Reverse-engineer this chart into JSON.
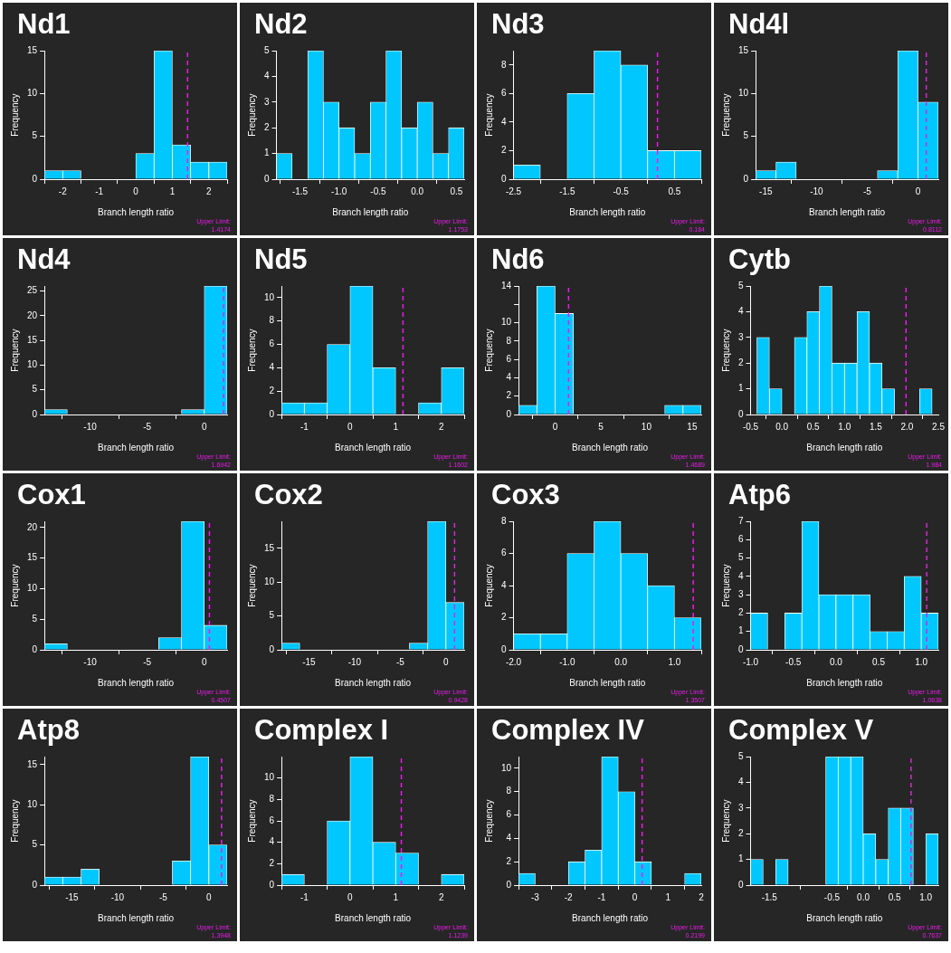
{
  "chart_data": [
    {
      "type": "histogram",
      "title": "Nd1",
      "xlabel": "Branch length ratio",
      "ylabel": "Frequency",
      "color": "#00c8ff",
      "bins": [
        -2.5,
        -2,
        -1.5,
        -1,
        -0.5,
        0,
        0.5,
        1,
        1.5,
        2,
        2.5
      ],
      "values": [
        1,
        1,
        0,
        0,
        0,
        3,
        15,
        4,
        2,
        2
      ],
      "xlim": [
        -2.5,
        2.5
      ],
      "xticks": [
        -2,
        -1,
        0,
        1,
        2
      ],
      "ylim": [
        0,
        15
      ],
      "yticks": [
        0,
        5,
        10,
        15
      ],
      "ref_lines": [
        {
          "axis": "x",
          "value": 1.4174,
          "label": "Upper Limit:\n1.4174",
          "color": "#e81ce8",
          "line_style": "dashed"
        }
      ]
    },
    {
      "type": "histogram",
      "title": "Nd2",
      "xlabel": "Branch length ratio",
      "ylabel": "Frequency",
      "color": "#00c8ff",
      "bins": [
        -1.8,
        -1.6,
        -1.4,
        -1.2,
        -1,
        -0.8,
        -0.6,
        -0.4,
        -0.2,
        0,
        0.2,
        0.4,
        0.6
      ],
      "values": [
        1,
        0,
        5,
        3,
        2,
        1,
        3,
        5,
        2,
        3,
        1,
        2
      ],
      "xlim": [
        -1.8,
        0.6
      ],
      "xticks": [
        -1.5,
        {
          "value": -1,
          "label": "-1.0"
        },
        -0.5,
        {
          "value": 0,
          "label": "0.0"
        },
        0.5
      ],
      "ylim": [
        0,
        5
      ],
      "yticks": [
        0,
        1,
        2,
        3,
        4,
        5
      ],
      "annotations": [
        "Upper Limit:\n1.1753"
      ]
    },
    {
      "type": "histogram",
      "title": "Nd3",
      "xlabel": "Branch length ratio",
      "ylabel": "Frequency",
      "color": "#00c8ff",
      "bins": [
        -2.5,
        -2,
        -1.5,
        -1,
        -0.5,
        0,
        0.5,
        1
      ],
      "values": [
        1,
        0,
        6,
        9,
        8,
        2,
        2
      ],
      "xlim": [
        -2.5,
        1
      ],
      "xticks": [
        -2.5,
        -1.5,
        -0.5,
        0.5
      ],
      "ylim": [
        0,
        9
      ],
      "yticks": [
        0,
        2,
        4,
        6,
        8
      ],
      "ref_lines": [
        {
          "axis": "x",
          "value": 0.184,
          "label": "Upper Limit:\n0.184",
          "color": "#e81ce8",
          "line_style": "dashed"
        }
      ]
    },
    {
      "type": "histogram",
      "title": "Nd4l",
      "xlabel": "Branch length ratio",
      "ylabel": "Frequency",
      "color": "#00c8ff",
      "bins": [
        -16,
        -14,
        -12,
        -10,
        -8,
        -6,
        -4,
        -2,
        0,
        2
      ],
      "values": [
        1,
        2,
        0,
        0,
        0,
        0,
        1,
        15,
        9
      ],
      "xlim": [
        -16,
        2
      ],
      "xticks": [
        -15,
        -10,
        -5,
        0
      ],
      "ylim": [
        0,
        15
      ],
      "yticks": [
        0,
        5,
        10,
        15
      ],
      "ref_lines": [
        {
          "axis": "x",
          "value": 0.8112,
          "label": "Upper Limit:\n0.8112",
          "color": "#e81ce8",
          "line_style": "dashed"
        }
      ]
    },
    {
      "type": "histogram",
      "title": "Nd4",
      "xlabel": "Branch length ratio",
      "ylabel": "Frequency",
      "color": "#00c8ff",
      "bins": [
        -14,
        -12,
        -10,
        -8,
        -6,
        -4,
        -2,
        0,
        2
      ],
      "values": [
        1,
        0,
        0,
        0,
        0,
        0,
        1,
        26
      ],
      "xlim": [
        -14,
        2
      ],
      "xticks": [
        -10,
        -5,
        0
      ],
      "ylim": [
        0,
        26
      ],
      "yticks": [
        0,
        5,
        10,
        15,
        20,
        25
      ],
      "ref_lines": [
        {
          "axis": "x",
          "value": 1.6942,
          "label": "Upper Limit:\n1.6942",
          "color": "#e81ce8",
          "line_style": "dashed"
        }
      ]
    },
    {
      "type": "histogram",
      "title": "Nd5",
      "xlabel": "Branch length ratio",
      "ylabel": "Frequency",
      "color": "#00c8ff",
      "bins": [
        -1.5,
        -1,
        -0.5,
        0,
        0.5,
        1,
        1.5,
        2,
        2.5
      ],
      "values": [
        1,
        1,
        6,
        11,
        4,
        0,
        1,
        4
      ],
      "xlim": [
        -1.5,
        2.5
      ],
      "xticks": [
        -1,
        0,
        1,
        2
      ],
      "ylim": [
        0,
        11
      ],
      "yticks": [
        0,
        2,
        4,
        6,
        8,
        10
      ],
      "ref_lines": [
        {
          "axis": "x",
          "value": 1.1602,
          "label": "Upper Limit:\n1.1602",
          "color": "#e81ce8",
          "line_style": "dashed"
        }
      ]
    },
    {
      "type": "histogram",
      "title": "Nd6",
      "xlabel": "Branch length ratio",
      "ylabel": "Frequency",
      "color": "#00c8ff",
      "bins": [
        -4,
        -2,
        0,
        2,
        4,
        6,
        8,
        10,
        12,
        14,
        16
      ],
      "values": [
        1,
        14,
        11,
        0,
        0,
        0,
        0,
        0,
        1,
        1
      ],
      "xlim": [
        -4,
        16
      ],
      "xticks": [
        0,
        5,
        10,
        15
      ],
      "ylim": [
        0,
        14
      ],
      "yticks": [
        0,
        2,
        4,
        6,
        8,
        10,
        {
          "value": 12,
          "label": null
        },
        14
      ],
      "ref_lines": [
        {
          "axis": "x",
          "value": 1.4689,
          "label": "Upper Limit:\n1.4689",
          "color": "#e81ce8",
          "line_style": "dashed"
        }
      ]
    },
    {
      "type": "histogram",
      "title": "Cytb",
      "xlabel": "Branch length ratio",
      "ylabel": "Frequency",
      "color": "#00c8ff",
      "bins": [
        -0.4,
        -0.2,
        0,
        0.2,
        0.4,
        0.6,
        0.8,
        1,
        1.2,
        1.4,
        1.6,
        1.8,
        2,
        2.2,
        2.4
      ],
      "values": [
        3,
        1,
        0,
        3,
        4,
        5,
        2,
        2,
        4,
        2,
        1,
        0,
        0,
        1
      ],
      "xlim": [
        -0.5,
        2.5
      ],
      "xticks": [
        -0.5,
        {
          "value": 0,
          "label": "0.0"
        },
        0.5,
        {
          "value": 1,
          "label": "1.0"
        },
        1.5,
        {
          "value": 2,
          "label": "2.0"
        },
        2.5
      ],
      "ylim": [
        0,
        5
      ],
      "yticks": [
        0,
        1,
        2,
        3,
        4,
        5
      ],
      "ref_lines": [
        {
          "axis": "x",
          "value": 1.984,
          "label": "Upper Limit:\n1.984",
          "color": "#e81ce8",
          "line_style": "dashed"
        }
      ]
    },
    {
      "type": "histogram",
      "title": "Cox1",
      "xlabel": "Branch length ratio",
      "ylabel": "Frequency",
      "color": "#00c8ff",
      "bins": [
        -14,
        -12,
        -10,
        -8,
        -6,
        -4,
        -2,
        0,
        2
      ],
      "values": [
        1,
        0,
        0,
        0,
        0,
        2,
        21,
        4
      ],
      "xlim": [
        -14,
        2
      ],
      "xticks": [
        -10,
        -5,
        0
      ],
      "ylim": [
        0,
        21
      ],
      "yticks": [
        0,
        5,
        10,
        15,
        20
      ],
      "ref_lines": [
        {
          "axis": "x",
          "value": 0.4507,
          "label": "Upper Limit:\n0.4507",
          "color": "#e81ce8",
          "line_style": "dashed"
        }
      ]
    },
    {
      "type": "histogram",
      "title": "Cox2",
      "xlabel": "Branch length ratio",
      "ylabel": "Frequency",
      "color": "#00c8ff",
      "bins": [
        -18,
        -16,
        -14,
        -12,
        -10,
        -8,
        -6,
        -4,
        -2,
        0,
        2
      ],
      "values": [
        1,
        0,
        0,
        0,
        0,
        0,
        0,
        1,
        19,
        7
      ],
      "xlim": [
        -18,
        2
      ],
      "xticks": [
        -15,
        -10,
        -5,
        0
      ],
      "ylim": [
        0,
        19
      ],
      "yticks": [
        0,
        5,
        10,
        15
      ],
      "ref_lines": [
        {
          "axis": "x",
          "value": 0.9428,
          "label": "Upper Limit:\n0.9428",
          "color": "#e81ce8",
          "line_style": "dashed"
        }
      ]
    },
    {
      "type": "histogram",
      "title": "Cox3",
      "xlabel": "Branch length ratio",
      "ylabel": "Frequency",
      "color": "#00c8ff",
      "bins": [
        -2,
        -1.5,
        -1,
        -0.5,
        0,
        0.5,
        1,
        1.5
      ],
      "values": [
        1,
        1,
        6,
        8,
        6,
        4,
        2
      ],
      "xlim": [
        -2,
        1.5
      ],
      "xticks": [
        {
          "value": -2,
          "label": "-2.0"
        },
        {
          "value": -1,
          "label": "-1.0"
        },
        {
          "value": 0,
          "label": "0.0"
        },
        {
          "value": 1,
          "label": "1.0"
        }
      ],
      "ylim": [
        0,
        8
      ],
      "yticks": [
        0,
        2,
        4,
        6,
        8
      ],
      "ref_lines": [
        {
          "axis": "x",
          "value": 1.3507,
          "label": "Upper Limit:\n1.3507",
          "color": "#e81ce8",
          "line_style": "dashed"
        }
      ]
    },
    {
      "type": "histogram",
      "title": "Atp6",
      "xlabel": "Branch length ratio",
      "ylabel": "Frequency",
      "color": "#00c8ff",
      "bins": [
        -1,
        -0.8,
        -0.6,
        -0.4,
        -0.2,
        0,
        0.2,
        0.4,
        0.6,
        0.8,
        1,
        1.2
      ],
      "values": [
        2,
        0,
        2,
        7,
        3,
        3,
        3,
        1,
        1,
        4,
        2
      ],
      "xlim": [
        -1,
        1.2
      ],
      "xticks": [
        {
          "value": -1,
          "label": "-1.0"
        },
        -0.5,
        {
          "value": 0,
          "label": "0.0"
        },
        0.5,
        {
          "value": 1,
          "label": "1.0"
        }
      ],
      "ylim": [
        0,
        7
      ],
      "yticks": [
        0,
        1,
        2,
        3,
        4,
        5,
        6,
        7
      ],
      "ref_lines": [
        {
          "axis": "x",
          "value": 1.0638,
          "label": "Upper Limit:\n1.0638",
          "color": "#e81ce8",
          "line_style": "dashed"
        }
      ]
    },
    {
      "type": "histogram",
      "title": "Atp8",
      "xlabel": "Branch length ratio",
      "ylabel": "Frequency",
      "color": "#00c8ff",
      "bins": [
        -18,
        -16,
        -14,
        -12,
        -10,
        -8,
        -6,
        -4,
        -2,
        0,
        2
      ],
      "values": [
        1,
        1,
        2,
        0,
        0,
        0,
        0,
        3,
        16,
        5
      ],
      "xlim": [
        -18,
        2
      ],
      "xticks": [
        -15,
        -10,
        -5,
        0
      ],
      "ylim": [
        0,
        16
      ],
      "yticks": [
        0,
        5,
        10,
        15
      ],
      "ref_lines": [
        {
          "axis": "x",
          "value": 1.3948,
          "label": "Upper Limit:\n1.3948",
          "color": "#e81ce8",
          "line_style": "dashed"
        }
      ]
    },
    {
      "type": "histogram",
      "title": "Complex I",
      "xlabel": "Branch length ratio",
      "ylabel": "Frequency",
      "color": "#00c8ff",
      "bins": [
        -1.5,
        -1,
        -0.5,
        0,
        0.5,
        1,
        1.5,
        2,
        2.5
      ],
      "values": [
        1,
        0,
        6,
        12,
        4,
        3,
        0,
        1
      ],
      "xlim": [
        -1.5,
        2.5
      ],
      "xticks": [
        -1,
        0,
        1,
        2
      ],
      "ylim": [
        0,
        12
      ],
      "yticks": [
        0,
        2,
        4,
        6,
        8,
        10
      ],
      "ref_lines": [
        {
          "axis": "x",
          "value": 1.1239,
          "label": "Upper Limit:\n1.1239",
          "color": "#e81ce8",
          "line_style": "dashed"
        }
      ]
    },
    {
      "type": "histogram",
      "title": "Complex IV",
      "xlabel": "Branch length ratio",
      "ylabel": "Frequency",
      "color": "#00c8ff",
      "bins": [
        -3.5,
        -3,
        -2.5,
        -2,
        -1.5,
        -1,
        -0.5,
        0,
        0.5,
        1,
        1.5,
        2
      ],
      "values": [
        1,
        0,
        0,
        2,
        3,
        11,
        8,
        2,
        0,
        0,
        1
      ],
      "xlim": [
        -3.5,
        2
      ],
      "xticks": [
        -3,
        -2,
        -1,
        0,
        1,
        2
      ],
      "ylim": [
        0,
        11
      ],
      "yticks": [
        0,
        2,
        4,
        6,
        8,
        10
      ],
      "ref_lines": [
        {
          "axis": "x",
          "value": 0.2199,
          "label": "Upper Limit:\n0.2199",
          "color": "#e81ce8",
          "line_style": "dashed"
        }
      ]
    },
    {
      "type": "histogram",
      "title": "Complex V",
      "xlabel": "Branch length ratio",
      "ylabel": "Frequency",
      "color": "#00c8ff",
      "bins": [
        -1.8,
        -1.6,
        -1.4,
        -1.2,
        -1,
        -0.8,
        -0.6,
        -0.4,
        -0.2,
        0,
        0.2,
        0.4,
        0.6,
        0.8,
        1,
        1.2
      ],
      "values": [
        1,
        0,
        1,
        0,
        0,
        0,
        5,
        5,
        5,
        2,
        1,
        3,
        3,
        0,
        2
      ],
      "xlim": [
        -1.8,
        1.2
      ],
      "xticks": [
        -1.5,
        -0.5,
        {
          "value": 0,
          "label": "0.0"
        },
        0.5,
        {
          "value": 1,
          "label": "1.0"
        }
      ],
      "ylim": [
        0,
        5
      ],
      "yticks": [
        0,
        1,
        2,
        3,
        4,
        5
      ],
      "ref_lines": [
        {
          "axis": "x",
          "value": 0.7637,
          "label": "Upper Limit:\n0.7637",
          "color": "#e81ce8",
          "line_style": "dashed"
        }
      ]
    }
  ]
}
